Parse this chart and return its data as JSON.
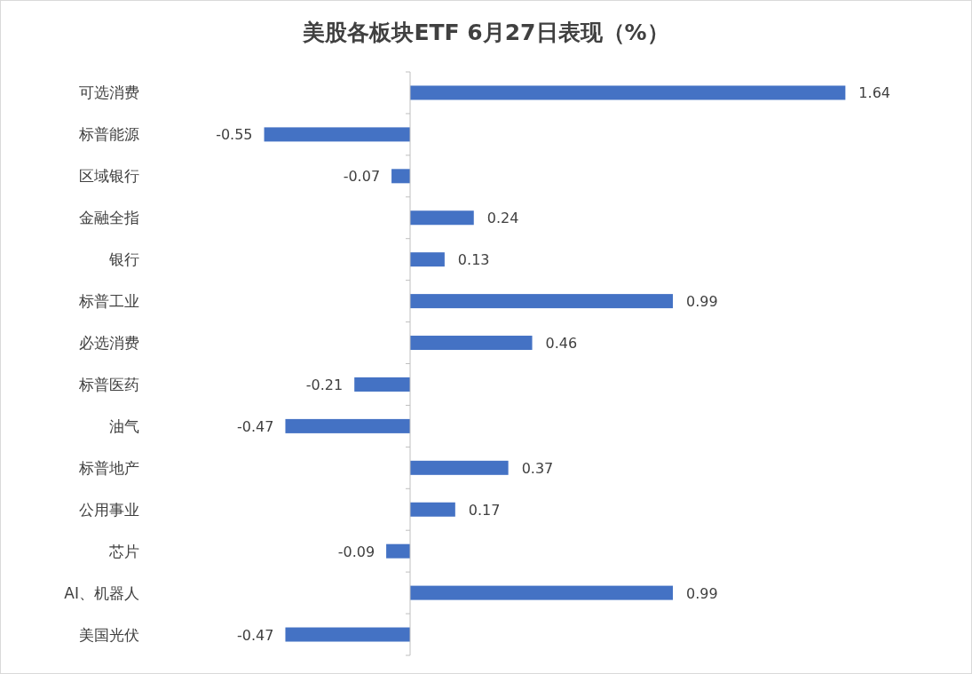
{
  "chart_data": {
    "type": "bar",
    "orientation": "horizontal",
    "title": "美股各板块ETF 6月27日表现（%）",
    "categories": [
      "可选消费",
      "标普能源",
      "区域银行",
      "金融全指",
      "银行",
      "标普工业",
      "必选消费",
      "标普医药",
      "油气",
      "标普地产",
      "公用事业",
      "芯片",
      "AI、机器人",
      "美国光伏"
    ],
    "values": [
      1.64,
      -0.55,
      -0.07,
      0.24,
      0.13,
      0.99,
      0.46,
      -0.21,
      -0.47,
      0.37,
      0.17,
      -0.09,
      0.99,
      -0.47
    ],
    "color": "#4472c4",
    "data_labels": true
  }
}
